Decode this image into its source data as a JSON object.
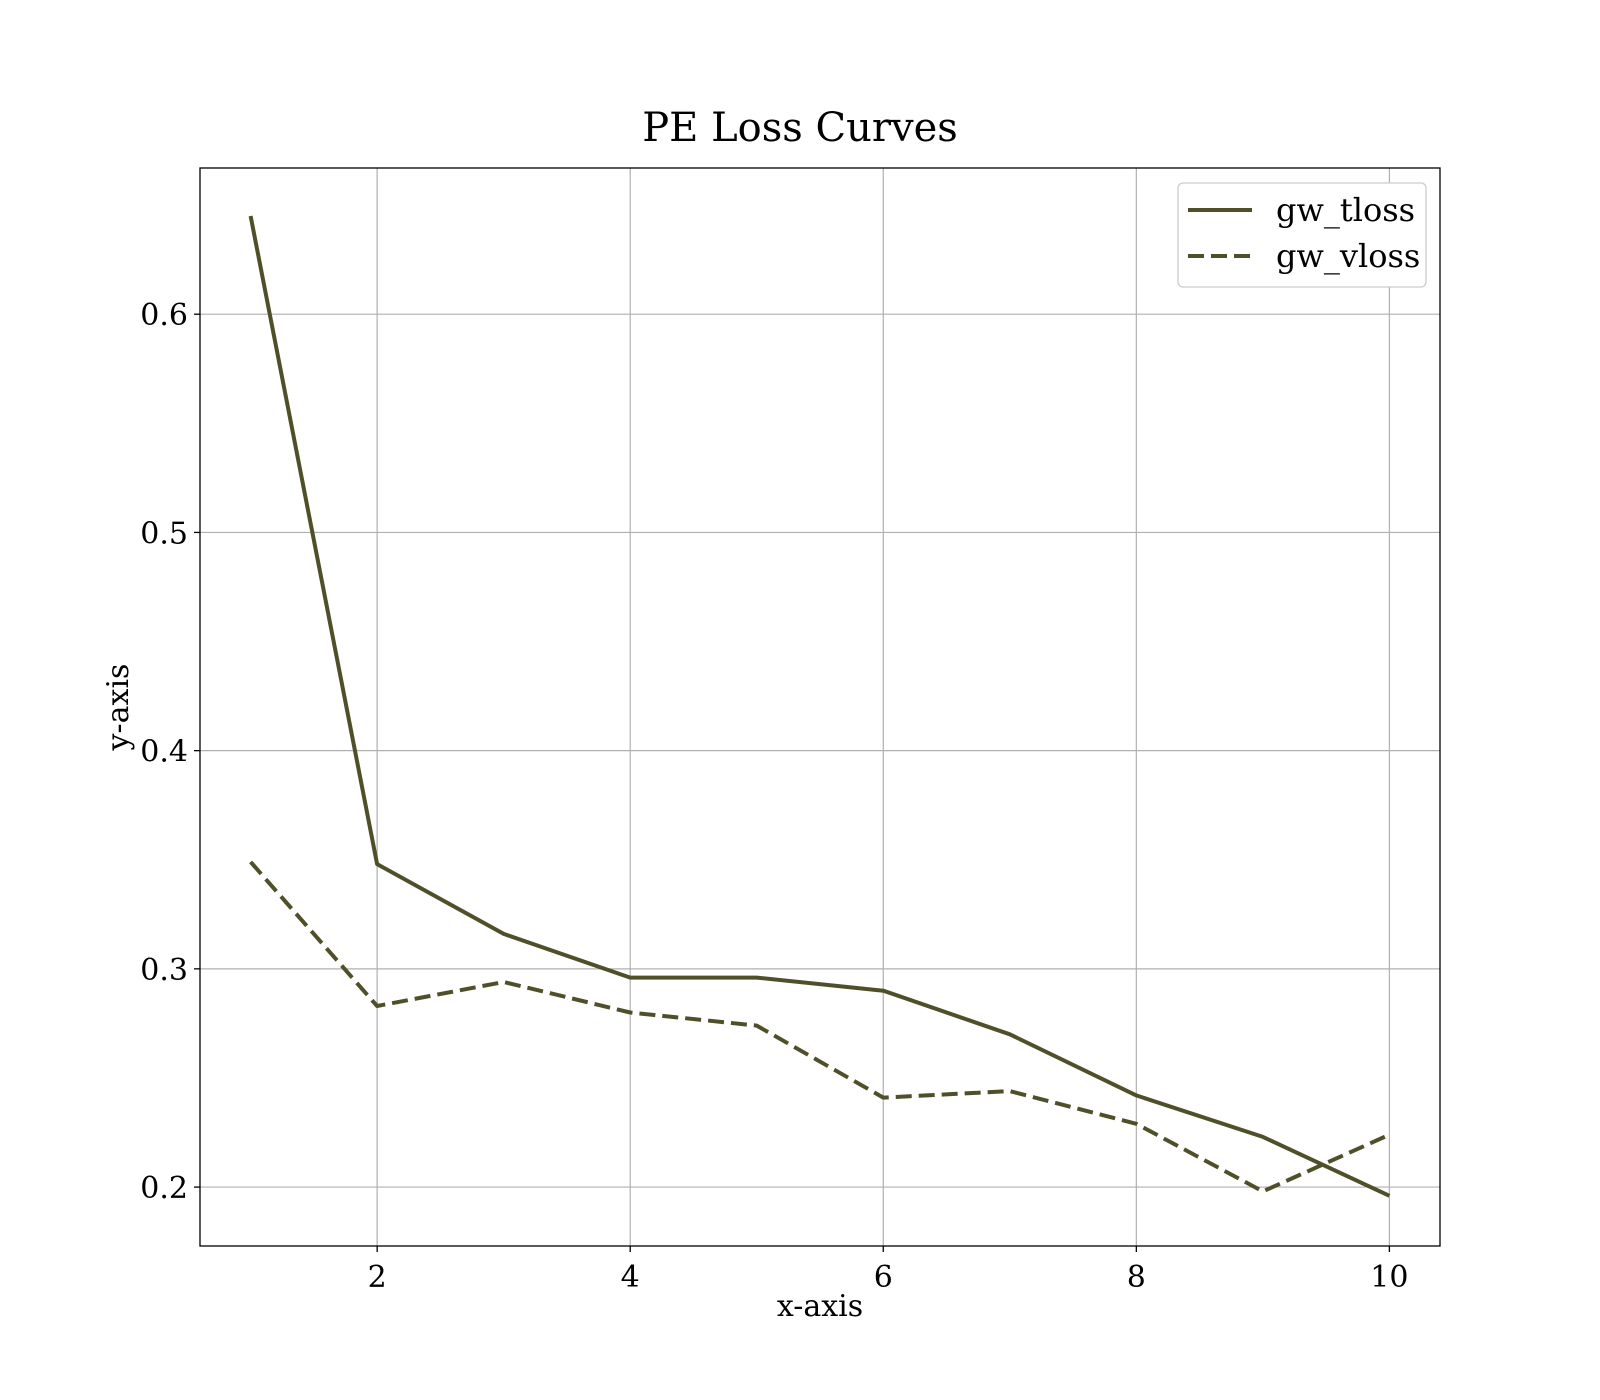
{
  "chart_data": {
    "type": "line",
    "title": "PE Loss Curves",
    "xlabel": "x-axis",
    "ylabel": "y-axis",
    "xlim": [
      0.6,
      10.4
    ],
    "ylim": [
      0.173,
      0.667
    ],
    "x_ticks": [
      2,
      4,
      6,
      8,
      10
    ],
    "y_ticks": [
      0.2,
      0.3,
      0.4,
      0.5,
      0.6
    ],
    "x_tick_labels": [
      "2",
      "4",
      "6",
      "8",
      "10"
    ],
    "y_tick_labels": [
      "0.2",
      "0.3",
      "0.4",
      "0.5",
      "0.6"
    ],
    "grid": true,
    "legend_position": "top-right",
    "x": [
      1,
      2,
      3,
      4,
      5,
      6,
      7,
      8,
      9,
      10
    ],
    "series": [
      {
        "name": "gw_tloss",
        "style": "solid",
        "color": "#4f4f2a",
        "values": [
          0.645,
          0.348,
          0.316,
          0.296,
          0.296,
          0.29,
          0.27,
          0.242,
          0.223,
          0.196
        ]
      },
      {
        "name": "gw_vloss",
        "style": "dashed",
        "color": "#4f4f2a",
        "values": [
          0.349,
          0.283,
          0.294,
          0.28,
          0.274,
          0.241,
          0.244,
          0.229,
          0.198,
          0.224
        ]
      }
    ]
  }
}
